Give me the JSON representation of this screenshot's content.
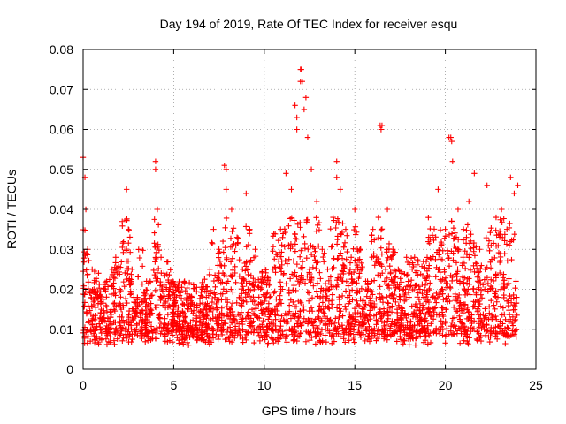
{
  "chart_data": {
    "type": "scatter",
    "title": "Day 194 of 2019, Rate Of TEC Index for receiver esqu",
    "xlabel": "GPS time / hours",
    "ylabel": "ROTI / TECUs",
    "xlim": [
      0,
      25
    ],
    "ylim": [
      0,
      0.08
    ],
    "x_ticks": [
      0,
      5,
      10,
      15,
      20,
      25
    ],
    "x_tick_labels": [
      "0",
      "5",
      "10",
      "15",
      "20",
      "25"
    ],
    "y_ticks": [
      0,
      0.01,
      0.02,
      0.03,
      0.04,
      0.05,
      0.06,
      0.07,
      0.08
    ],
    "y_tick_labels": [
      "0",
      "0.01",
      "0.02",
      "0.03",
      "0.04",
      "0.05",
      "0.06",
      "0.07",
      "0.08"
    ],
    "grid": true,
    "marker": "+",
    "color": "#ff0000",
    "series": [
      {
        "name": "ROTI",
        "x": [
          0.0,
          0.1,
          0.15,
          0.25,
          0.5,
          0.8,
          1.0,
          1.3,
          1.5,
          1.8,
          2.0,
          2.2,
          2.4,
          2.5,
          2.7,
          3.0,
          3.2,
          3.5,
          3.8,
          4.0,
          4.1,
          4.3,
          4.6,
          5.0,
          5.3,
          5.6,
          6.0,
          6.3,
          6.6,
          7.0,
          7.2,
          7.5,
          7.8,
          7.9,
          8.2,
          8.5,
          8.8,
          9.0,
          9.2,
          9.5,
          9.8,
          10.0,
          10.3,
          10.6,
          10.9,
          11.2,
          11.5,
          11.8,
          12.0,
          12.1,
          12.2,
          12.4,
          12.6,
          12.9,
          13.2,
          13.5,
          13.8,
          14.0,
          14.2,
          14.5,
          14.8,
          15.0,
          15.3,
          15.6,
          16.0,
          16.3,
          16.5,
          16.8,
          17.1,
          17.4,
          17.7,
          18.0,
          18.3,
          18.6,
          19.0,
          19.3,
          19.6,
          20.0,
          20.2,
          20.4,
          20.7,
          21.0,
          21.3,
          21.6,
          21.9,
          22.2,
          22.5,
          22.8,
          23.1,
          23.4,
          23.6,
          23.8,
          24.0,
          0.3,
          1.1,
          2.1,
          3.3,
          4.4,
          5.5,
          6.5,
          7.4,
          8.4,
          9.4,
          10.4,
          11.4,
          12.3,
          13.3,
          14.3,
          15.4,
          16.4,
          17.5,
          18.5,
          19.5,
          20.5,
          21.5,
          22.6,
          23.5,
          0.6,
          1.6,
          2.8,
          3.7,
          4.8,
          5.8,
          6.8,
          8.0,
          9.1,
          10.1,
          11.0,
          12.5,
          13.6,
          14.6,
          15.7,
          16.7,
          17.8,
          18.8,
          19.8,
          20.8,
          21.8,
          22.9,
          23.9,
          12.0,
          12.05,
          12.3,
          11.7,
          11.8,
          16.4,
          16.45,
          20.3,
          20.35,
          4.0,
          7.9,
          14.0,
          22.3
        ],
        "y": [
          0.053,
          0.048,
          0.04,
          0.03,
          0.025,
          0.018,
          0.015,
          0.022,
          0.012,
          0.028,
          0.02,
          0.016,
          0.045,
          0.035,
          0.025,
          0.018,
          0.03,
          0.022,
          0.014,
          0.052,
          0.04,
          0.028,
          0.02,
          0.015,
          0.012,
          0.022,
          0.018,
          0.01,
          0.02,
          0.025,
          0.035,
          0.03,
          0.051,
          0.045,
          0.04,
          0.033,
          0.025,
          0.044,
          0.035,
          0.03,
          0.02,
          0.025,
          0.018,
          0.015,
          0.035,
          0.049,
          0.045,
          0.06,
          0.075,
          0.072,
          0.065,
          0.058,
          0.05,
          0.042,
          0.03,
          0.025,
          0.038,
          0.052,
          0.045,
          0.035,
          0.028,
          0.04,
          0.03,
          0.022,
          0.035,
          0.038,
          0.061,
          0.04,
          0.03,
          0.025,
          0.02,
          0.018,
          0.028,
          0.02,
          0.015,
          0.018,
          0.045,
          0.035,
          0.058,
          0.052,
          0.04,
          0.035,
          0.042,
          0.049,
          0.03,
          0.025,
          0.02,
          0.038,
          0.04,
          0.035,
          0.048,
          0.044,
          0.046,
          0.012,
          0.01,
          0.015,
          0.012,
          0.016,
          0.008,
          0.011,
          0.013,
          0.009,
          0.012,
          0.008,
          0.01,
          0.012,
          0.014,
          0.011,
          0.012,
          0.015,
          0.01,
          0.012,
          0.009,
          0.011,
          0.01,
          0.013,
          0.012,
          0.02,
          0.025,
          0.018,
          0.022,
          0.02,
          0.015,
          0.018,
          0.022,
          0.02,
          0.018,
          0.02,
          0.025,
          0.02,
          0.018,
          0.022,
          0.025,
          0.02,
          0.018,
          0.02,
          0.022,
          0.02,
          0.018,
          0.022,
          0.072,
          0.075,
          0.068,
          0.066,
          0.063,
          0.061,
          0.06,
          0.058,
          0.057,
          0.05,
          0.05,
          0.048,
          0.046
        ]
      }
    ]
  }
}
